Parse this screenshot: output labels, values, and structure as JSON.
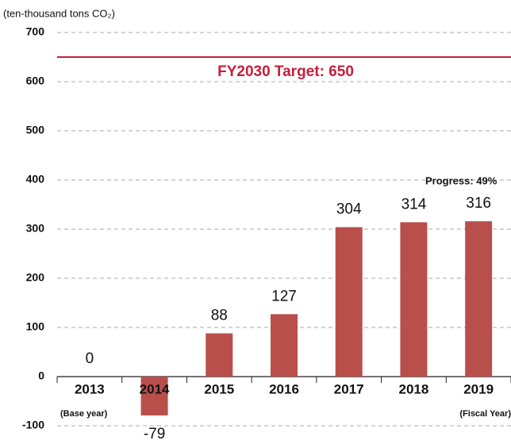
{
  "chart_data": {
    "type": "bar",
    "y_axis_label": "(ten-thousand tons CO₂)",
    "categories": [
      "2013",
      "2014",
      "2015",
      "2016",
      "2017",
      "2018",
      "2019"
    ],
    "values": [
      0,
      -79,
      88,
      127,
      304,
      314,
      316
    ],
    "color": "#b94f4b",
    "ylim": [
      -100,
      700
    ],
    "yticks": [
      -100,
      0,
      100,
      200,
      300,
      400,
      500,
      600,
      700
    ],
    "grid": true,
    "target": {
      "value": 650,
      "label": "FY2030 Target: 650",
      "color": "#c41f3a"
    },
    "annotations": {
      "progress": "Progress: 49%",
      "base_year": "(Base year)",
      "fiscal_year": "(Fiscal Year)"
    }
  }
}
